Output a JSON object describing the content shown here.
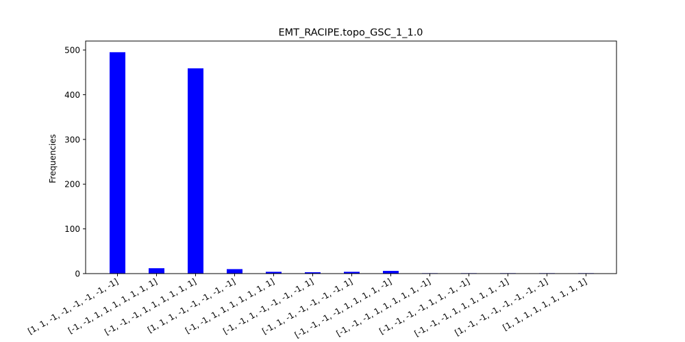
{
  "chart_data": {
    "type": "bar",
    "title": "EMT_RACIPE.topo_GSC_1_1.0",
    "xlabel": "",
    "ylabel": "Frequencies",
    "ylim": [
      0,
      520
    ],
    "yticks": [
      0,
      100,
      200,
      300,
      400,
      500
    ],
    "grid": false,
    "bar_color": "#0000ff",
    "categories": [
      "[1, 1, -1, -1, -1, -1, -1, -1]",
      "[-1, -1, 1, 1, 1, 1, 1, 1, 1]",
      "[-1, -1, -1, 1, 1, 1, 1, 1, 1]",
      "[1, 1, 1, -1, -1, -1, -1, -1]",
      "[-1, -1, 1, 1, 1, 1, 1, 1, 1]",
      "[-1, -1, 1, -1, -1, -1, -1, 1]",
      "[-1, 1, -1, -1, -1, -1, -1, 1]",
      "[-1, -1, -1, -1, 1, 1, 1, 1, -1]",
      "[-1, -1, -1, 1, 1, 1, 1, 1, -1]",
      "[-1, -1, -1, -1, 1, 1, -1, -1]",
      "[-1, -1, -1, 1, 1, 1, 1, 1, -1]",
      "[1, -1, -1, -1, -1, -1, -1, -1]",
      "[1, 1, 1, 1, 1, 1, 1, 1, 1]"
    ],
    "values": [
      495,
      12,
      459,
      10,
      4,
      3,
      4,
      6,
      1,
      1,
      1,
      1,
      1
    ]
  }
}
